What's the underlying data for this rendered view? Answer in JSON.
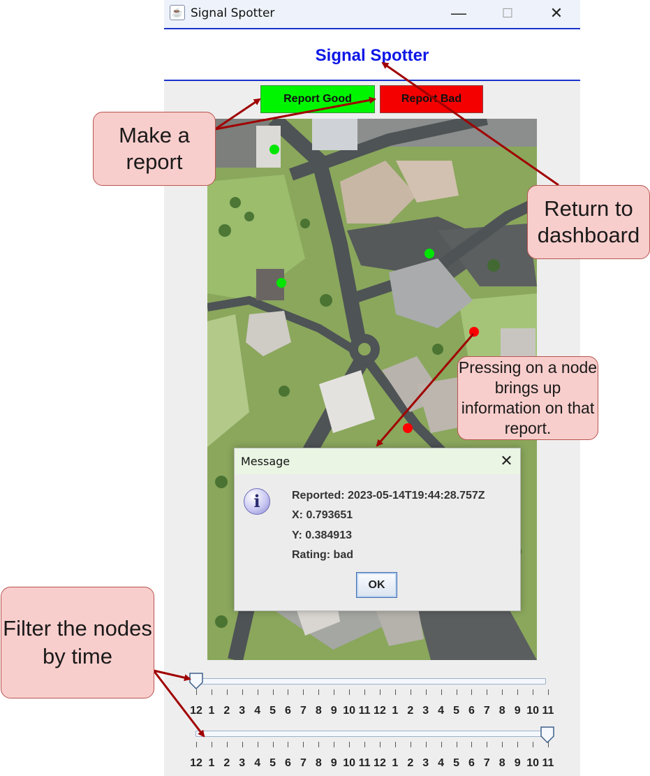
{
  "window": {
    "title": "Signal Spotter",
    "minimize": "—",
    "maximize": "☐",
    "close": "✕"
  },
  "header": {
    "title": "Signal Spotter",
    "title_color": "#0d17e6"
  },
  "toolbar": {
    "report_good_label": "Report Good",
    "report_bad_label": "Report Bad",
    "good_color": "#00f600",
    "bad_color": "#f40000"
  },
  "map": {
    "nodes": [
      {
        "rating": "good",
        "color": "#00e600"
      },
      {
        "rating": "good",
        "color": "#00e600"
      },
      {
        "rating": "good",
        "color": "#00e600"
      },
      {
        "rating": "bad",
        "color": "#ff0000"
      },
      {
        "rating": "bad",
        "color": "#ff0000"
      }
    ]
  },
  "dialog": {
    "title": "Message",
    "close": "✕",
    "icon": "info-icon",
    "reported": "Reported: 2023-05-14T19:44:28.757Z",
    "x": "X: 0.793651",
    "y": "Y: 0.384913",
    "rating": "Rating: bad",
    "ok_label": "OK"
  },
  "sliders": {
    "tick_labels": [
      "12",
      "1",
      "2",
      "3",
      "4",
      "5",
      "6",
      "7",
      "8",
      "9",
      "10",
      "11",
      "12",
      "1",
      "2",
      "3",
      "4",
      "5",
      "6",
      "7",
      "8",
      "9",
      "10",
      "11"
    ],
    "start_value_fraction": 0.0,
    "end_value_fraction": 1.0
  },
  "annotations": {
    "make_report": "Make a report",
    "return_dashboard": "Return to dashboard",
    "node_info": "Pressing on a node brings up information on that report.",
    "filter_time": "Filter the nodes by time",
    "arrow_color": "#a00000"
  }
}
